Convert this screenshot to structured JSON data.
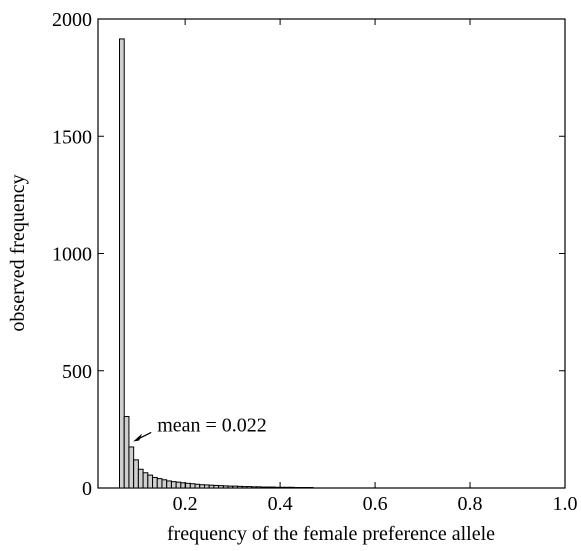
{
  "chart_data": {
    "type": "bar",
    "title": "",
    "xlabel": "frequency of the female preference allele",
    "ylabel": "observed frequency",
    "xlim": [
      0,
      1.0
    ],
    "ylim": [
      0,
      2000
    ],
    "x_ticks": [
      "0.2",
      "0.4",
      "0.6",
      "0.8",
      "1.0"
    ],
    "y_ticks": [
      "0",
      "500",
      "1000",
      "1500",
      "2000"
    ],
    "bin_width": 0.01,
    "bin_starts": [
      0.0,
      0.01,
      0.02,
      0.03,
      0.04,
      0.05,
      0.06,
      0.07,
      0.08,
      0.09,
      0.1,
      0.11,
      0.12,
      0.13,
      0.14,
      0.15,
      0.16,
      0.17,
      0.18,
      0.19,
      0.2,
      0.21,
      0.22,
      0.23,
      0.24,
      0.25,
      0.26,
      0.27,
      0.28,
      0.29,
      0.3,
      0.31,
      0.32,
      0.33,
      0.34,
      0.35,
      0.36,
      0.37,
      0.38,
      0.39,
      0.4
    ],
    "values": [
      1915,
      305,
      175,
      120,
      80,
      65,
      55,
      45,
      40,
      35,
      30,
      27,
      25,
      22,
      20,
      18,
      16,
      14,
      13,
      12,
      11,
      10,
      9,
      8,
      8,
      7,
      6,
      6,
      5,
      5,
      4,
      4,
      4,
      3,
      3,
      3,
      3,
      2,
      2,
      2,
      2
    ],
    "annotation": {
      "text": "mean = 0.022",
      "x": 0.022,
      "y": 190
    }
  }
}
